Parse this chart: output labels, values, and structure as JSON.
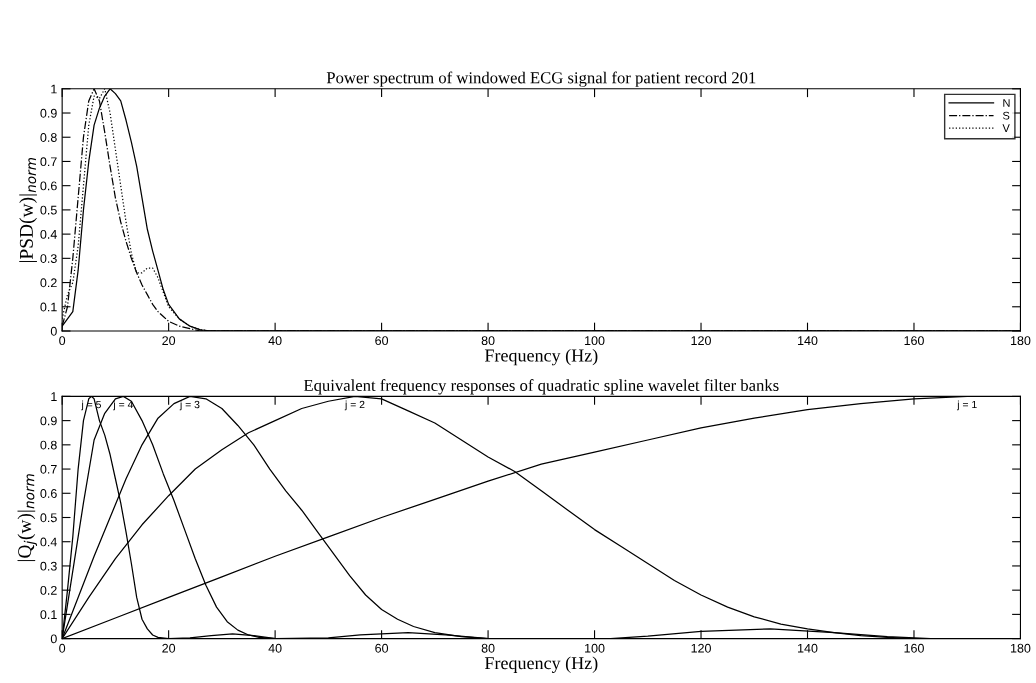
{
  "chart_data": [
    {
      "type": "line",
      "title": "Power spectrum of windowed ECG signal for patient record 201",
      "xlabel": "Frequency (Hz)",
      "ylabel": "|PSD(w)|$_{norm}$",
      "xlim": [
        0,
        180
      ],
      "ylim": [
        0,
        1
      ],
      "xticks": [
        0,
        20,
        40,
        60,
        80,
        100,
        120,
        140,
        160,
        180
      ],
      "yticks": [
        0,
        0.1,
        0.2,
        0.3,
        0.4,
        0.5,
        0.6,
        0.7,
        0.8,
        0.9,
        1
      ],
      "grid": false,
      "legend": "top right",
      "marker": "none",
      "series": [
        {
          "name": "N",
          "color": "#000000",
          "line_style": "solid",
          "x": [
            0,
            1,
            2,
            3,
            4,
            5,
            6,
            7,
            8,
            9,
            10,
            11,
            12,
            13,
            14,
            15,
            16,
            17,
            18,
            19,
            20,
            22,
            24,
            26,
            28,
            180
          ],
          "values": [
            0.02,
            0.05,
            0.08,
            0.25,
            0.5,
            0.7,
            0.85,
            0.92,
            0.97,
            1.0,
            0.98,
            0.95,
            0.87,
            0.78,
            0.68,
            0.55,
            0.42,
            0.33,
            0.25,
            0.17,
            0.11,
            0.05,
            0.02,
            0.005,
            0,
            0
          ]
        },
        {
          "name": "S",
          "color": "#000000",
          "line_style": "dashdot",
          "x": [
            0,
            1,
            2,
            3,
            4,
            5,
            6,
            7,
            8,
            9,
            10,
            11,
            12,
            13,
            14,
            15,
            16,
            17,
            18,
            19,
            20,
            22,
            24,
            26,
            180
          ],
          "values": [
            0.02,
            0.1,
            0.3,
            0.55,
            0.8,
            0.95,
            1.0,
            0.95,
            0.82,
            0.68,
            0.55,
            0.45,
            0.37,
            0.3,
            0.24,
            0.19,
            0.15,
            0.11,
            0.08,
            0.06,
            0.04,
            0.02,
            0.01,
            0,
            0
          ]
        },
        {
          "name": "V",
          "color": "#000000",
          "line_style": "dotted",
          "x": [
            0,
            1,
            2,
            3,
            4,
            5,
            6,
            7,
            8,
            9,
            10,
            11,
            12,
            13,
            14,
            15,
            16,
            17,
            18,
            19,
            20,
            22,
            24,
            26,
            28,
            180
          ],
          "values": [
            0.05,
            0.15,
            0.2,
            0.35,
            0.6,
            0.85,
            0.97,
            0.96,
            1.0,
            0.9,
            0.75,
            0.6,
            0.45,
            0.32,
            0.24,
            0.24,
            0.26,
            0.26,
            0.22,
            0.16,
            0.1,
            0.05,
            0.02,
            0.005,
            0,
            0
          ]
        }
      ]
    },
    {
      "type": "line",
      "title": "Equivalent frequency responses of quadratic spline wavelet filter banks",
      "xlabel": "Frequency (Hz)",
      "ylabel": "|Q$_{j}$(w)|$_{norm}$",
      "xlim": [
        0,
        180
      ],
      "ylim": [
        0,
        1
      ],
      "xticks": [
        0,
        20,
        40,
        60,
        80,
        100,
        120,
        140,
        160,
        180
      ],
      "yticks": [
        0,
        0.1,
        0.2,
        0.3,
        0.4,
        0.5,
        0.6,
        0.7,
        0.8,
        0.9,
        1
      ],
      "grid": false,
      "marker": "none",
      "line_style": "solid",
      "series": [
        {
          "name": "j = 5",
          "color": "#000000",
          "x": [
            0,
            1,
            2,
            3,
            4,
            5,
            5.5,
            6,
            7,
            8,
            9,
            10,
            11,
            12,
            13,
            14,
            15,
            16,
            17,
            18,
            20,
            24,
            28,
            32,
            36,
            40
          ],
          "values": [
            0,
            0.2,
            0.42,
            0.7,
            0.9,
            0.99,
            1.0,
            0.99,
            0.9,
            0.84,
            0.76,
            0.66,
            0.56,
            0.44,
            0.31,
            0.17,
            0.08,
            0.04,
            0.015,
            0.005,
            0,
            0.003,
            0.012,
            0.02,
            0.012,
            0
          ]
        },
        {
          "name": "j = 4",
          "color": "#000000",
          "x": [
            0,
            2,
            4,
            6,
            8,
            10,
            11.5,
            13,
            15,
            17,
            19,
            21,
            23,
            25,
            27,
            29,
            31,
            33,
            35,
            37,
            40,
            50,
            56,
            65,
            72,
            78,
            80
          ],
          "values": [
            0,
            0.28,
            0.56,
            0.82,
            0.93,
            0.99,
            1.0,
            0.98,
            0.9,
            0.8,
            0.68,
            0.57,
            0.45,
            0.33,
            0.22,
            0.13,
            0.07,
            0.035,
            0.015,
            0.005,
            0,
            0.003,
            0.015,
            0.025,
            0.015,
            0.004,
            0
          ]
        },
        {
          "name": "j = 3",
          "color": "#000000",
          "x": [
            0,
            3,
            6,
            9,
            12,
            15,
            18,
            21,
            24,
            27,
            30,
            33,
            36,
            39,
            42,
            45,
            48,
            51,
            54,
            57,
            60,
            63,
            66,
            70,
            75,
            80,
            103,
            110,
            120,
            133,
            145,
            155,
            163
          ],
          "values": [
            0,
            0.17,
            0.34,
            0.5,
            0.66,
            0.8,
            0.91,
            0.97,
            1.0,
            0.99,
            0.95,
            0.88,
            0.8,
            0.7,
            0.61,
            0.53,
            0.44,
            0.35,
            0.26,
            0.18,
            0.12,
            0.08,
            0.05,
            0.025,
            0.008,
            0,
            0,
            0.01,
            0.03,
            0.04,
            0.025,
            0.008,
            0
          ]
        },
        {
          "name": "j = 2",
          "color": "#000000",
          "x": [
            0,
            5,
            10,
            15,
            20,
            25,
            30,
            35,
            40,
            45,
            50,
            55,
            60,
            65,
            70,
            80,
            85,
            90,
            95,
            100,
            105,
            110,
            115,
            120,
            125,
            130,
            135,
            140,
            145,
            150,
            155,
            160
          ],
          "values": [
            0,
            0.17,
            0.33,
            0.47,
            0.59,
            0.7,
            0.78,
            0.85,
            0.9,
            0.95,
            0.98,
            1.0,
            0.99,
            0.94,
            0.89,
            0.75,
            0.69,
            0.61,
            0.53,
            0.45,
            0.38,
            0.31,
            0.24,
            0.18,
            0.13,
            0.09,
            0.06,
            0.04,
            0.025,
            0.012,
            0.005,
            0
          ]
        },
        {
          "name": "j = 1",
          "color": "#000000",
          "x": [
            0,
            10,
            20,
            30,
            40,
            50,
            60,
            70,
            80,
            90,
            100,
            110,
            120,
            130,
            140,
            150,
            160,
            170,
            180
          ],
          "values": [
            0,
            0.085,
            0.17,
            0.255,
            0.34,
            0.42,
            0.5,
            0.575,
            0.65,
            0.72,
            0.77,
            0.82,
            0.87,
            0.91,
            0.945,
            0.97,
            0.99,
            1.0,
            1.0
          ]
        }
      ]
    }
  ]
}
